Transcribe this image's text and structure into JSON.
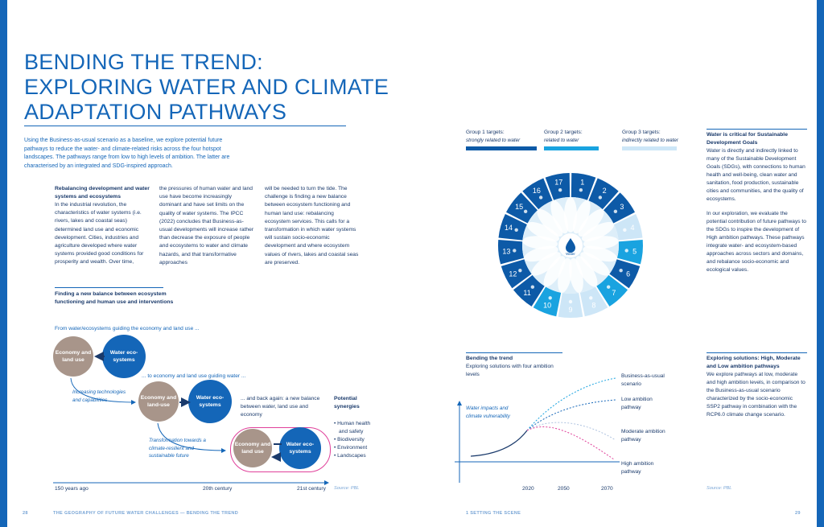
{
  "title": {
    "line1": "BENDING THE TREND:",
    "line2": "EXPLORING WATER AND CLIMATE",
    "line3": "ADAPTATION PATHWAYS"
  },
  "intro": "Using the Business-as-usual scenario as a baseline, we explore potential future pathways to reduce the water- and climate-related risks across the four hotspot landscapes. The pathways range from low to high levels of ambition. The latter are characterised by an integrated and SDG-inspired approach.",
  "columns": {
    "col1_head": "Rebalancing development and water systems and ecosystems",
    "col1_text": "In the industrial revolution, the characteristics of water systems (i.e. rivers, lakes and coastal seas) determined land use and economic development. Cities, industries and agriculture developed where water systems provided good conditions for prosperity and wealth. Over time,",
    "col2_text": "the pressures of human water and land use have become increasingly dominant and have set limits on the quality of water systems. The IPCC (2022) concludes that Business-as-usual developments will increase rather than decrease the exposure of people and ecosystems to water and climate hazards, and that transformative approaches",
    "col3_text": "will be needed to turn the tide. The challenge is finding a new balance between ecosystem functioning and human land use: rebalancing ecosystem services. This calls for a transformation in which water systems will sustain socio-economic development and where ecosystem values of rivers, lakes and coastal seas are preserved."
  },
  "balance_diagram": {
    "heading": "Finding a new balance between ecosystem functioning and human use and interventions",
    "row1_label": "From water/ecosystems guiding the economy and land use ...",
    "row2_label": "... to economy and land use guiding water ...",
    "row3_label": "... and back again: a new balance between water, land use and economy",
    "economy1": "Economy and land use",
    "water1": "Water eco-systems",
    "economy2": "Economy and land-use",
    "water2": "Water eco-systems",
    "economy3": "Economy and land use",
    "water3": "Water eco-systems",
    "side_note1": "Increasing technologies and capabilities",
    "side_note2": "Transformation towards a climate-resilient and sustainable future",
    "synergies_head": "Potential synergies",
    "synergies": [
      "• Human health",
      "and safety",
      "• Biodiversity",
      "• Environment",
      "• Landscapes"
    ],
    "axis": [
      "150 years ago",
      "20th century",
      "21st century"
    ],
    "source": "Source:  PBL"
  },
  "sdg_wheel": {
    "legend": [
      {
        "head": "Group 1 targets:",
        "sub": "strongly related to water",
        "color": "#0d5aa7"
      },
      {
        "head": "Group 2 targets:",
        "sub": "related to water",
        "color": "#19a3e0"
      },
      {
        "head": "Group 3 targets:",
        "sub": "indirectly related to water",
        "color": "#cde6f7"
      }
    ],
    "center": "Water",
    "numbers": [
      "1",
      "2",
      "3",
      "4",
      "5",
      "6",
      "7",
      "8",
      "9",
      "10",
      "11",
      "12",
      "13",
      "14",
      "15",
      "16",
      "17"
    ]
  },
  "sdg_text": {
    "head": "Water is critical for Sustainable Development Goals",
    "p1": "Water is directly and indirectly linked to many of the Sustainable Development Goals (SDGs), with connections to human health and well-being, clean water and sanitation, food production, sustainable cities and communities, and the quality of ecosystems.",
    "p2": "In our exploration, we evaluate the potential contribution of future pathways to the SDGs to inspire the development of High ambition pathways. These pathways integrate water- and ecosystem-based approaches across sectors and domains, and rebalance socio-economic and ecological values."
  },
  "trend_chart": {
    "head": "Bending the trend",
    "sub": "Exploring solutions with four ambition levels",
    "ylabel": "Water impacts and climate vulnerability",
    "x_ticks": [
      "2020",
      "2050",
      "2070"
    ],
    "lines": [
      {
        "label": "Business-as-usual scenario",
        "color": "#19a3e0"
      },
      {
        "label": "Low ambition pathway",
        "color": "#1466b8"
      },
      {
        "label": "Moderate ambition pathway",
        "color": "#b0c4e0"
      },
      {
        "label": "High ambition pathway",
        "color": "#e0409a"
      }
    ],
    "source": "Source:  PBL"
  },
  "solutions_text": {
    "head": "Exploring solutions: High, Moderate and Low ambition pathways",
    "p": "We explore pathways at low, moderate and high ambition levels, in comparison to the Business-as-usual scenario characterized by the socio-economic SSP2 pathway in combination with the RCP6.0 climate change scenario."
  },
  "footer": {
    "left_page": "28",
    "left_title": "THE GEOGRAPHY OF FUTURE WATER CHALLENGES — BENDING THE TREND",
    "right_title": "1 SETTING THE SCENE",
    "right_page": "29"
  }
}
